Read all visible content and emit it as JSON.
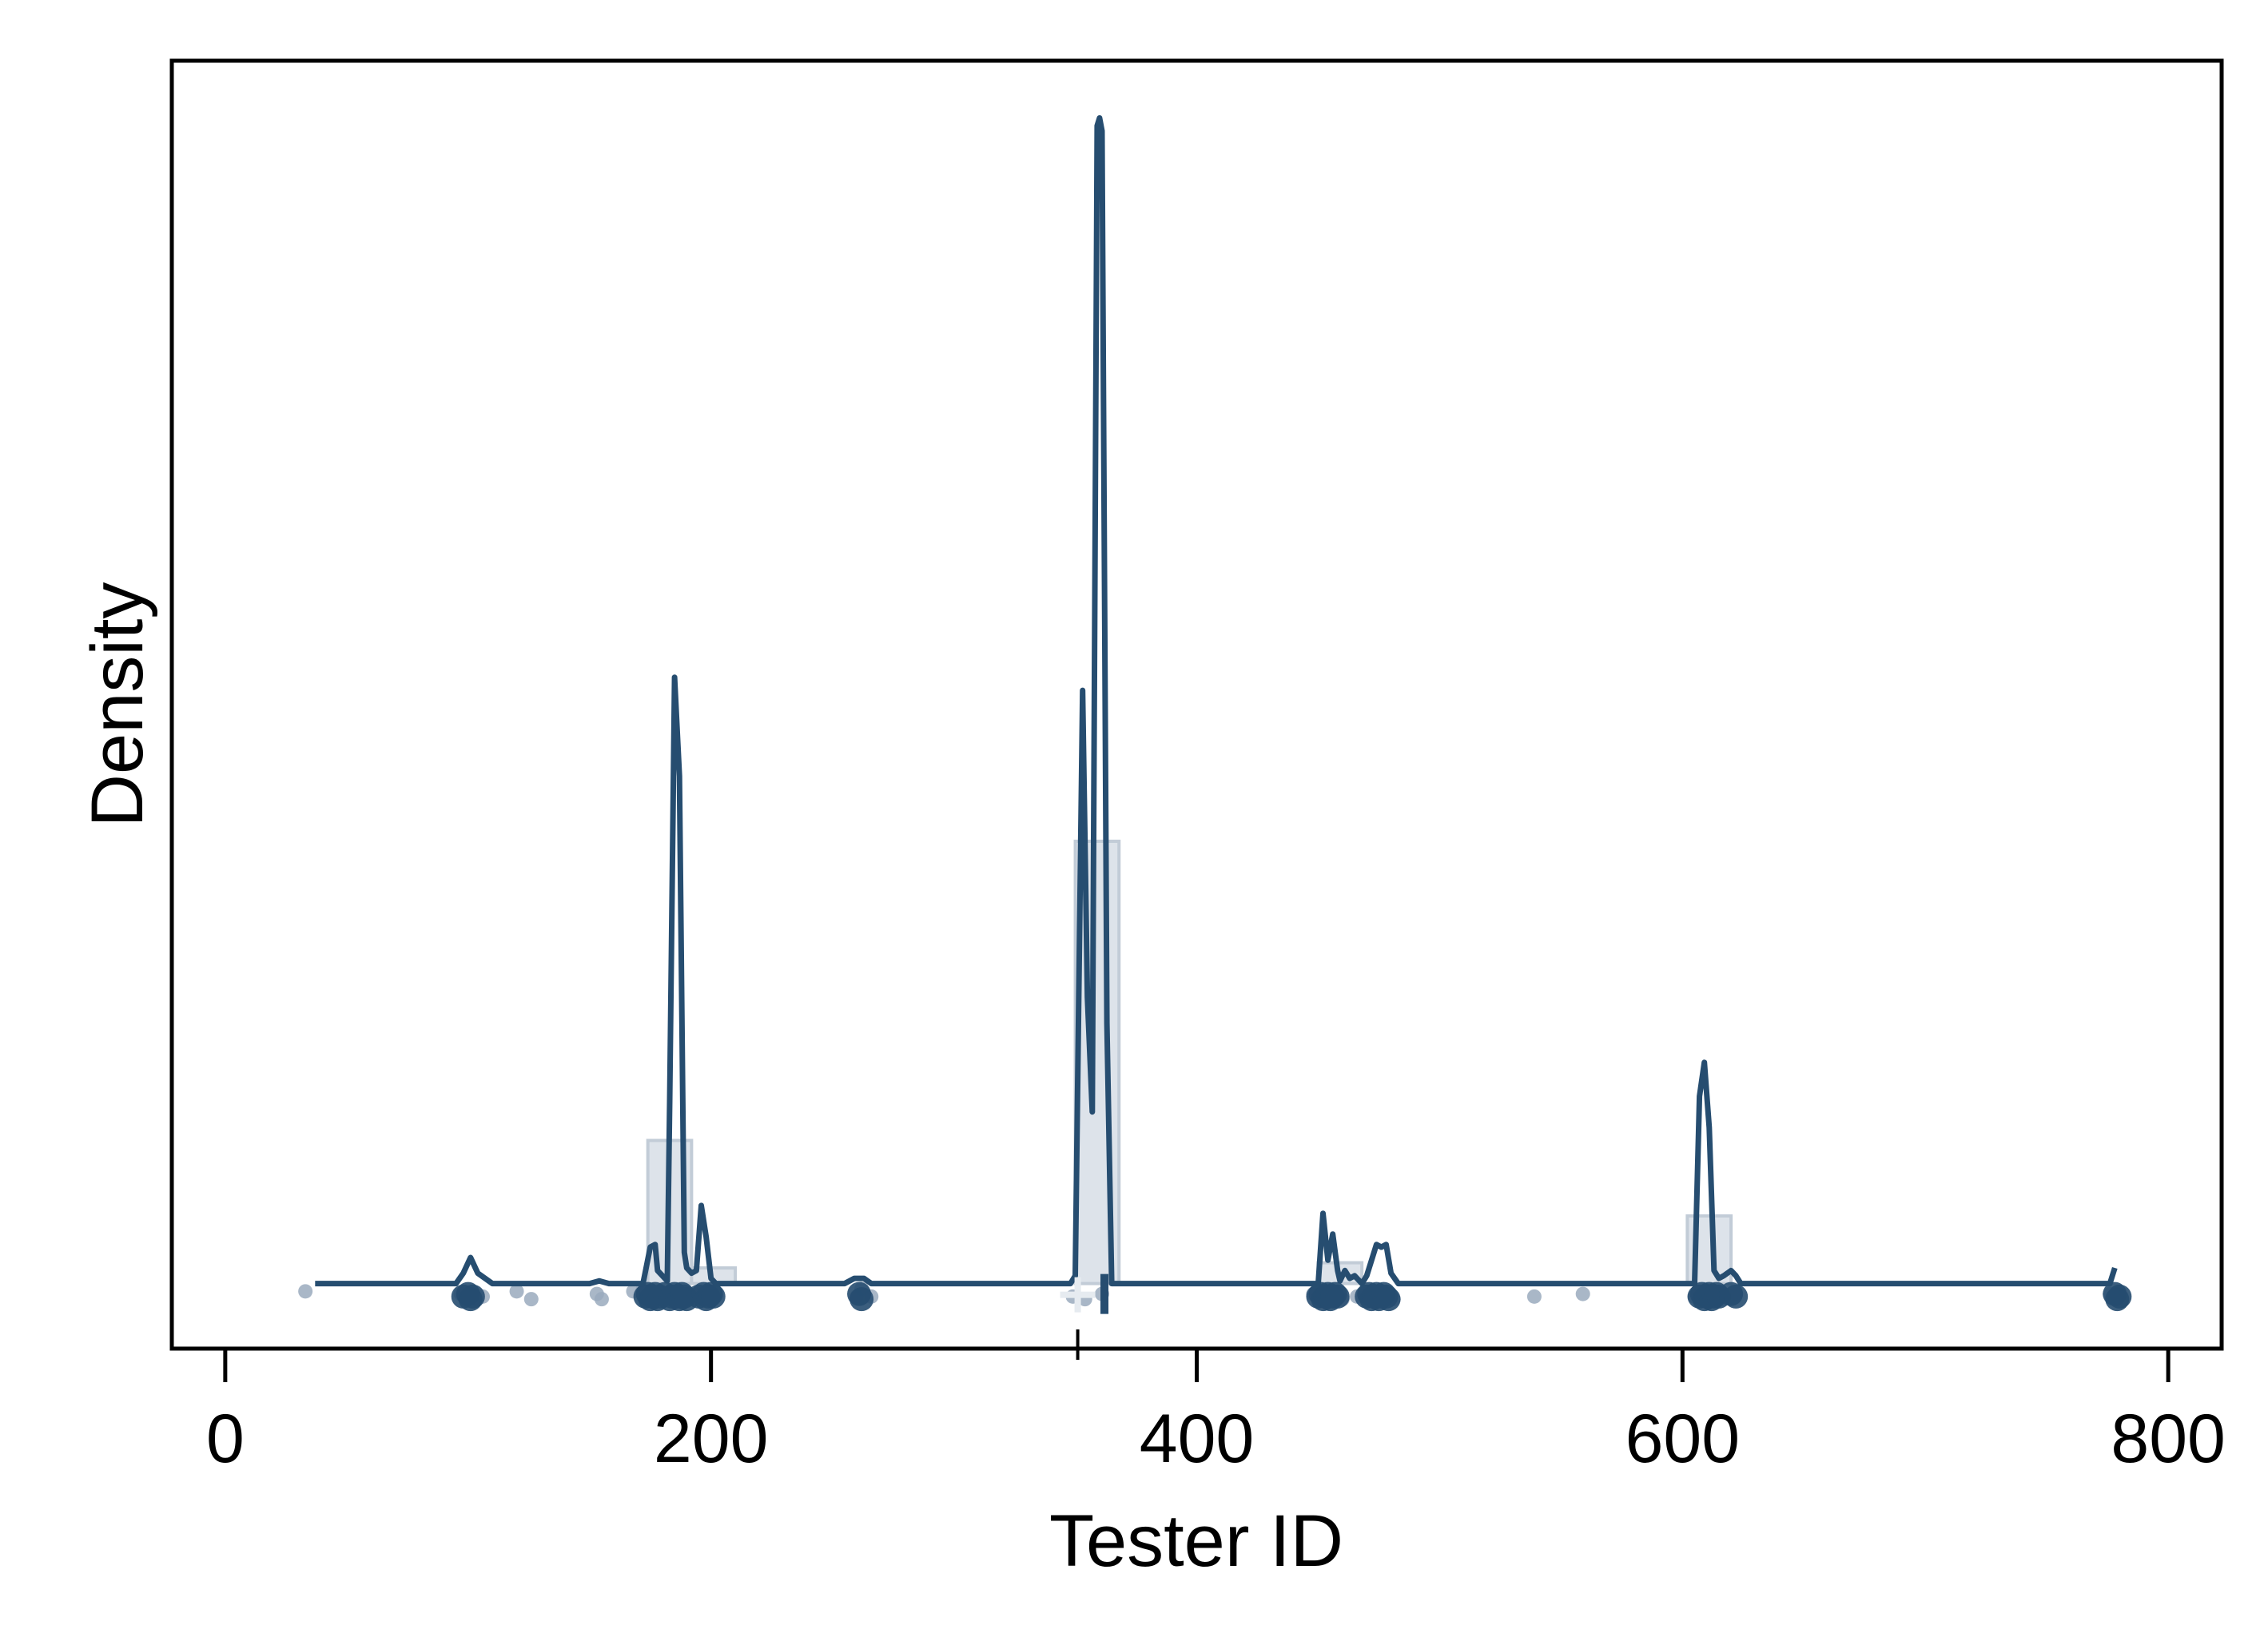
{
  "chart_data": {
    "type": "area",
    "title": "",
    "xlabel": "Tester ID",
    "ylabel": "Density",
    "xlim": [
      -22,
      822
    ],
    "ylim": [
      -0.025,
      0.47
    ],
    "x_ticks": [
      {
        "value": 0,
        "label": "0"
      },
      {
        "value": 200,
        "label": "200"
      },
      {
        "value": 400,
        "label": "400"
      },
      {
        "value": 600,
        "label": "600"
      },
      {
        "value": 800,
        "label": "800"
      }
    ],
    "y_ticks_shown": false,
    "grid": false,
    "legend": "none",
    "colors": {
      "line": "#264d70",
      "histogram_fill": "#dde3ea",
      "histogram_edge": "#c2ccd7",
      "points_light": "#9aaabd",
      "points_dark": "#264d70",
      "frame": "#000000"
    },
    "histogram": {
      "bin_width": 18,
      "bins": [
        {
          "x0": 174,
          "x1": 192,
          "density": 0.055
        },
        {
          "x0": 192,
          "x1": 210,
          "density": 0.006
        },
        {
          "x0": 350,
          "x1": 368,
          "density": 0.17
        },
        {
          "x0": 450,
          "x1": 468,
          "density": 0.008
        },
        {
          "x0": 602,
          "x1": 620,
          "density": 0.026
        }
      ]
    },
    "density_curve": {
      "x": [
        37,
        95,
        98,
        101,
        104,
        110,
        150,
        154,
        158,
        172,
        175,
        177,
        178,
        180,
        182,
        183,
        185,
        187,
        189,
        190,
        192,
        194,
        196,
        198,
        200,
        202,
        204,
        207,
        255,
        259,
        263,
        266,
        348,
        350,
        353,
        355,
        357,
        359,
        360,
        361,
        363,
        365,
        368,
        370,
        440,
        450,
        452,
        454,
        456,
        458,
        459,
        461,
        463,
        465,
        468,
        470,
        472,
        474,
        476,
        478,
        480,
        483,
        486,
        600,
        605,
        607,
        609,
        611,
        613,
        615,
        617,
        620,
        622,
        624,
        626,
        650,
        776,
        778
      ],
      "y": [
        0.0,
        0.0,
        0.004,
        0.01,
        0.004,
        0.0,
        0.0,
        0.001,
        0.0,
        0.0,
        0.014,
        0.015,
        0.005,
        0.003,
        0.001,
        0.07,
        0.233,
        0.195,
        0.012,
        0.006,
        0.004,
        0.005,
        0.03,
        0.018,
        0.002,
        0.0,
        0.0,
        0.0,
        0.0,
        0.002,
        0.002,
        0.0,
        0.0,
        0.003,
        0.228,
        0.11,
        0.066,
        0.445,
        0.448,
        0.443,
        0.1,
        0.0,
        0.0,
        0.0,
        0.0,
        0.0,
        0.027,
        0.009,
        0.019,
        0.005,
        0.001,
        0.005,
        0.002,
        0.003,
        0.0,
        0.003,
        0.009,
        0.015,
        0.014,
        0.015,
        0.004,
        0.0,
        0.0,
        0.0,
        0.0,
        0.072,
        0.085,
        0.06,
        0.005,
        0.002,
        0.003,
        0.005,
        0.003,
        0.0,
        0.0,
        0.0,
        0.0,
        0.006
      ]
    },
    "observations": {
      "light_points": [
        {
          "x": 33,
          "y": -0.003
        },
        {
          "x": 97,
          "y": -0.004
        },
        {
          "x": 103,
          "y": -0.006
        },
        {
          "x": 106,
          "y": -0.005
        },
        {
          "x": 120,
          "y": -0.003
        },
        {
          "x": 126,
          "y": -0.006
        },
        {
          "x": 153,
          "y": -0.004
        },
        {
          "x": 155,
          "y": -0.006
        },
        {
          "x": 168,
          "y": -0.003
        },
        {
          "x": 172,
          "y": -0.002
        },
        {
          "x": 179,
          "y": -0.005
        },
        {
          "x": 186,
          "y": -0.007
        },
        {
          "x": 194,
          "y": -0.004
        },
        {
          "x": 201,
          "y": -0.006
        },
        {
          "x": 260,
          "y": -0.005
        },
        {
          "x": 262,
          "y": -0.002
        },
        {
          "x": 266,
          "y": -0.005
        },
        {
          "x": 349,
          "y": -0.005
        },
        {
          "x": 354,
          "y": -0.006
        },
        {
          "x": 361,
          "y": -0.004
        },
        {
          "x": 448,
          "y": -0.004
        },
        {
          "x": 460,
          "y": -0.006
        },
        {
          "x": 466,
          "y": -0.005
        },
        {
          "x": 470,
          "y": -0.004
        },
        {
          "x": 481,
          "y": -0.006
        },
        {
          "x": 539,
          "y": -0.005
        },
        {
          "x": 559,
          "y": -0.004
        },
        {
          "x": 605,
          "y": -0.005
        },
        {
          "x": 616,
          "y": -0.006
        },
        {
          "x": 622,
          "y": -0.004
        },
        {
          "x": 776,
          "y": -0.004
        },
        {
          "x": 779,
          "y": -0.006
        }
      ],
      "dark_points": [
        {
          "x": 98,
          "y": -0.005
        },
        {
          "x": 100,
          "y": -0.004
        },
        {
          "x": 101,
          "y": -0.006
        },
        {
          "x": 102,
          "y": -0.005
        },
        {
          "x": 173,
          "y": -0.005
        },
        {
          "x": 174,
          "y": -0.004
        },
        {
          "x": 175,
          "y": -0.006
        },
        {
          "x": 176,
          "y": -0.005
        },
        {
          "x": 177,
          "y": -0.004
        },
        {
          "x": 178,
          "y": -0.006
        },
        {
          "x": 179,
          "y": -0.005
        },
        {
          "x": 181,
          "y": -0.004
        },
        {
          "x": 183,
          "y": -0.006
        },
        {
          "x": 184,
          "y": -0.005
        },
        {
          "x": 185,
          "y": -0.004
        },
        {
          "x": 186,
          "y": -0.005
        },
        {
          "x": 187,
          "y": -0.006
        },
        {
          "x": 188,
          "y": -0.004
        },
        {
          "x": 189,
          "y": -0.005
        },
        {
          "x": 190,
          "y": -0.006
        },
        {
          "x": 195,
          "y": -0.005
        },
        {
          "x": 197,
          "y": -0.004
        },
        {
          "x": 198,
          "y": -0.006
        },
        {
          "x": 199,
          "y": -0.005
        },
        {
          "x": 200,
          "y": -0.004
        },
        {
          "x": 201,
          "y": -0.005
        },
        {
          "x": 261,
          "y": -0.004
        },
        {
          "x": 262,
          "y": -0.006
        },
        {
          "x": 450,
          "y": -0.005
        },
        {
          "x": 451,
          "y": -0.004
        },
        {
          "x": 452,
          "y": -0.006
        },
        {
          "x": 453,
          "y": -0.005
        },
        {
          "x": 454,
          "y": -0.004
        },
        {
          "x": 455,
          "y": -0.006
        },
        {
          "x": 456,
          "y": -0.005
        },
        {
          "x": 457,
          "y": -0.004
        },
        {
          "x": 458,
          "y": -0.005
        },
        {
          "x": 470,
          "y": -0.005
        },
        {
          "x": 471,
          "y": -0.004
        },
        {
          "x": 472,
          "y": -0.006
        },
        {
          "x": 473,
          "y": -0.005
        },
        {
          "x": 474,
          "y": -0.004
        },
        {
          "x": 475,
          "y": -0.006
        },
        {
          "x": 476,
          "y": -0.005
        },
        {
          "x": 477,
          "y": -0.004
        },
        {
          "x": 478,
          "y": -0.005
        },
        {
          "x": 479,
          "y": -0.006
        },
        {
          "x": 607,
          "y": -0.005
        },
        {
          "x": 608,
          "y": -0.004
        },
        {
          "x": 609,
          "y": -0.006
        },
        {
          "x": 610,
          "y": -0.005
        },
        {
          "x": 611,
          "y": -0.004
        },
        {
          "x": 612,
          "y": -0.006
        },
        {
          "x": 613,
          "y": -0.005
        },
        {
          "x": 614,
          "y": -0.004
        },
        {
          "x": 615,
          "y": -0.005
        },
        {
          "x": 620,
          "y": -0.004
        },
        {
          "x": 622,
          "y": -0.005
        },
        {
          "x": 778,
          "y": -0.004
        },
        {
          "x": 779,
          "y": -0.006
        },
        {
          "x": 780,
          "y": -0.005
        }
      ]
    },
    "summary_markers": {
      "mean_plus": {
        "x": 351
      },
      "median_bar": {
        "x": 362
      }
    }
  }
}
